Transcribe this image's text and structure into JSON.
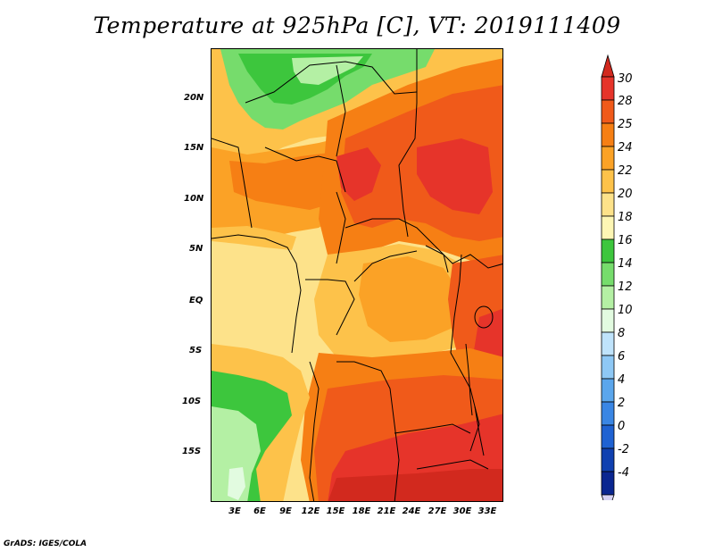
{
  "title": "Temperature at 925hPa [C], VT: 2019111409",
  "credit": "GrADS: IGES/COLA",
  "lat_labels": [
    "20N",
    "15N",
    "10N",
    "5N",
    "EQ",
    "5S",
    "10S",
    "15S"
  ],
  "lon_labels": [
    "3E",
    "6E",
    "9E",
    "12E",
    "15E",
    "18E",
    "21E",
    "24E",
    "27E",
    "30E",
    "33E"
  ],
  "colorbar": {
    "labels": [
      "30",
      "28",
      "25",
      "24",
      "22",
      "20",
      "18",
      "16",
      "14",
      "12",
      "10",
      "8",
      "6",
      "4",
      "2",
      "0",
      "-2",
      "-4"
    ],
    "colors": [
      "#e6342a",
      "#f05a1a",
      "#f67f14",
      "#fba226",
      "#fdc24a",
      "#fde28a",
      "#fdf6b4",
      "#3dc63d",
      "#76dc6c",
      "#b4f0a4",
      "#e2fbe0",
      "#bfe3fb",
      "#8ec8f5",
      "#5ba6ec",
      "#3a86e4",
      "#1f62d2",
      "#1040b0",
      "#0a2690",
      "#06106a",
      "#d6d2f4"
    ],
    "over_color": "#d2291e",
    "under_color": "#d6d2f4"
  },
  "map_colors": {
    "c30": "#d2291e",
    "c28": "#e6342a",
    "c25": "#f05a1a",
    "c24": "#f67f14",
    "c22": "#fba226",
    "c20": "#fdc24a",
    "c18": "#fde28a",
    "c16": "#3dc63d",
    "c14": "#76dc6c",
    "c12": "#b4f0a4",
    "c10": "#e2fbe0"
  }
}
